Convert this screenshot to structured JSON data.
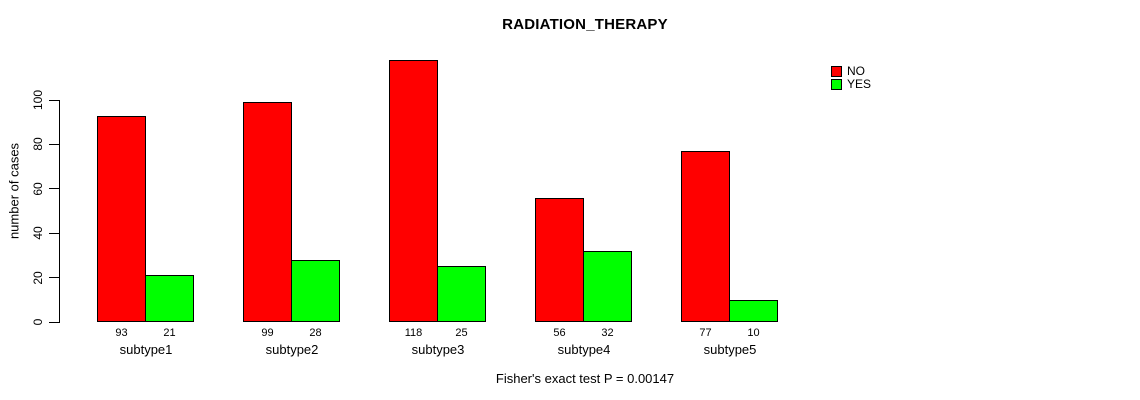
{
  "chart_data": {
    "type": "bar",
    "title": "RADIATION_THERAPY",
    "ylabel": "number of cases",
    "xlabel": "",
    "categories": [
      "subtype1",
      "subtype2",
      "subtype3",
      "subtype4",
      "subtype5"
    ],
    "series": [
      {
        "name": "NO",
        "color": "#FF0000",
        "values": [
          93,
          99,
          118,
          56,
          77
        ]
      },
      {
        "name": "YES",
        "color": "#00FF00",
        "values": [
          21,
          28,
          25,
          32,
          10
        ]
      }
    ],
    "yticks": [
      0,
      20,
      40,
      60,
      80,
      100
    ],
    "ylim": [
      0,
      100
    ],
    "grid": false,
    "legend_position": "top-right",
    "bar_value_labels_shown": true,
    "caption": "Fisher's exact test P = 0.00147"
  }
}
